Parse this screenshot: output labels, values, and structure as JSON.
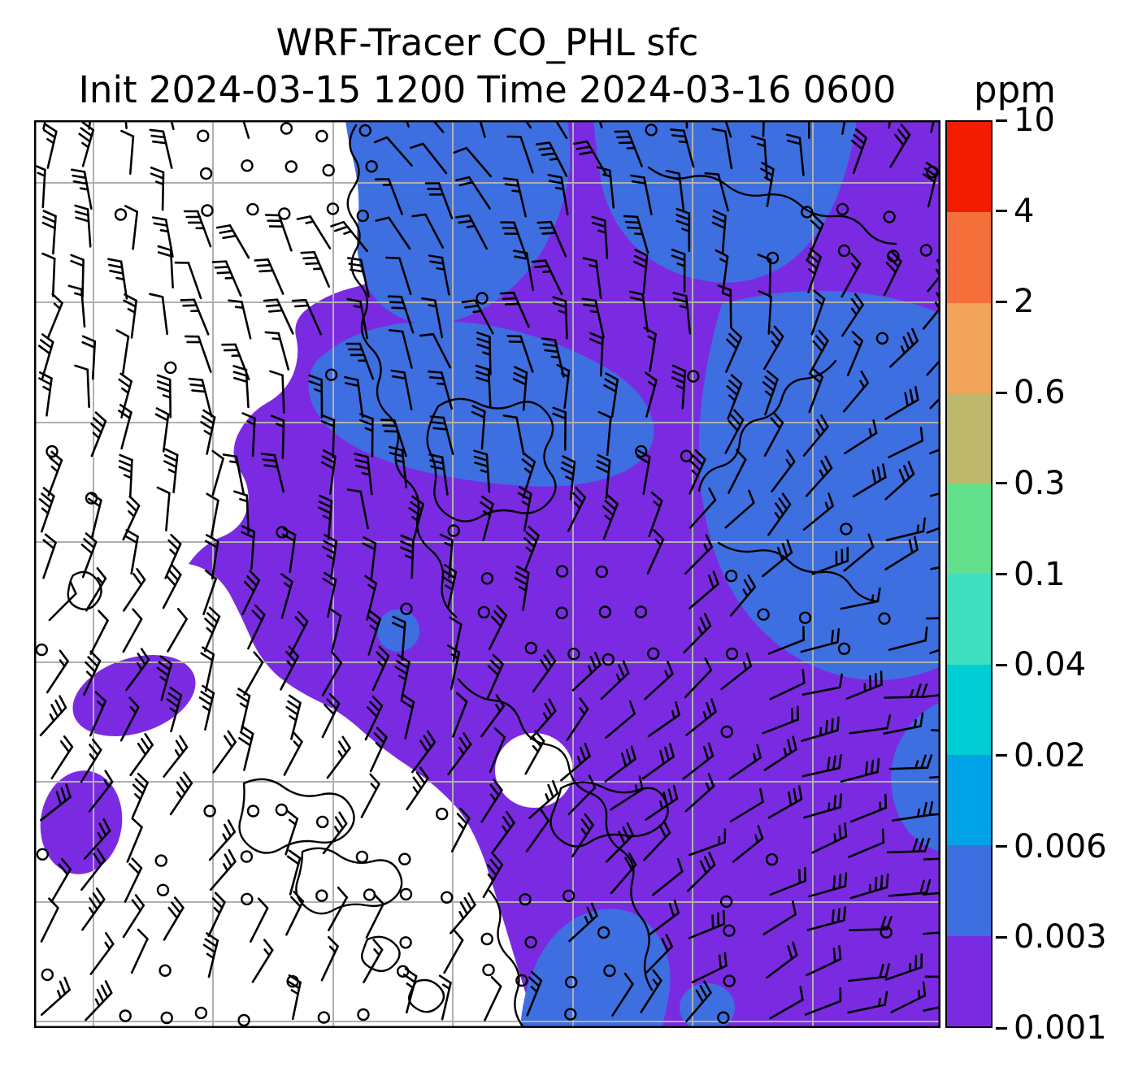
{
  "figure": {
    "title": "WRF-Tracer CO_PHL sfc",
    "subtitle": "Init 2024-03-15 1200 Time 2024-03-16 0600",
    "colorbar_label": "ppm"
  },
  "chart_data": {
    "type": "heatmap",
    "title": "WRF-Tracer CO_PHL sfc",
    "subtitle": "Init 2024-03-15 1200 Time 2024-03-16 0600",
    "variable": "CO_PHL tracer concentration",
    "level": "sfc",
    "init_time": "2024-03-15 1200",
    "valid_time": "2024-03-16 0600",
    "units": "ppm",
    "colorbar": {
      "orientation": "vertical",
      "label": "ppm",
      "levels": [
        0.001,
        0.003,
        0.006,
        0.02,
        0.04,
        0.1,
        0.3,
        0.6,
        2,
        4,
        10
      ],
      "tick_labels": [
        "0.001",
        "0.003",
        "0.006",
        "0.02",
        "0.04",
        "0.1",
        "0.3",
        "0.6",
        "2",
        "4",
        "10"
      ],
      "colors": [
        "#7a2be2",
        "#3e6fe1",
        "#00a2e8",
        "#00cdd4",
        "#3fe0c0",
        "#63e08c",
        "#bdb76b",
        "#f2a45a",
        "#f46f3a",
        "#f31b00"
      ]
    },
    "field_summary": {
      "plotted_value_range": "0.001 to 0.006 ppm (only the two lowest color bins appear on the map)",
      "regions": [
        {
          "value_range": "0.003-0.006 ppm",
          "color_index": 1,
          "where": "upper-center plume, broad east/right half bands, bottom-center patches"
        },
        {
          "value_range": "0.001-0.003 ppm",
          "color_index": 0,
          "where": "large central plume covering center and right of domain, small isolated patches on west side"
        },
        {
          "value_range": "< 0.001 ppm",
          "color": "#ffffff",
          "where": "western third and lower-center-left of domain"
        }
      ]
    },
    "overlays": [
      "wind barbs (black)",
      "calm-wind open circles",
      "coastlines (black)",
      "lat/lon gridlines (gray)"
    ],
    "grid": {
      "vertical_lines": 7,
      "horizontal_lines": 8,
      "gridlines_on": true
    },
    "gridline_color": "#b0b0b0",
    "coastline_color": "#000000",
    "wind_barb_color": "#000000",
    "wind_barbs": {
      "symbol": "meteorological barb",
      "calm_symbol": "open circle"
    }
  }
}
